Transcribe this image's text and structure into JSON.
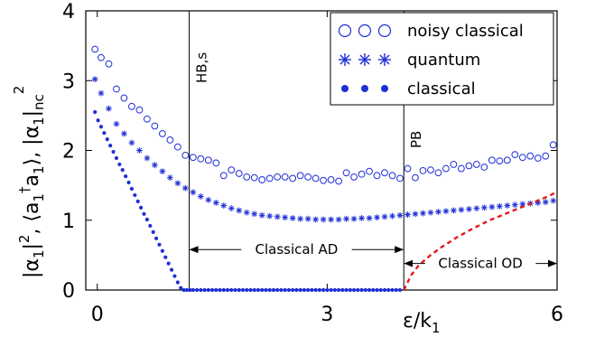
{
  "chart_data": {
    "type": "scatter",
    "xlabel": "ε/k",
    "xlabel_sub": "1",
    "ylabel_parts": [
      "|α",
      "1",
      "|",
      "2",
      ", ⟨a",
      "1",
      "†",
      "a",
      "1",
      "⟩, ",
      "|α",
      "1",
      "|",
      "nc",
      "2"
    ],
    "xlim": [
      -0.15,
      6
    ],
    "ylim": [
      0,
      4
    ],
    "xticks": [
      0,
      3,
      6
    ],
    "xtick_labels": [
      "0",
      "3",
      "6"
    ],
    "yticks": [
      0,
      1,
      2,
      3,
      4
    ],
    "ytick_labels": [
      "0",
      "1",
      "2",
      "3",
      "4"
    ],
    "legend_position": "top-right",
    "series": [
      {
        "name": "noisy classical",
        "marker": "open-circle",
        "color": "#1f2fd6",
        "x": [
          -0.03,
          0.05,
          0.15,
          0.25,
          0.35,
          0.45,
          0.55,
          0.65,
          0.75,
          0.85,
          0.95,
          1.05,
          1.15,
          1.25,
          1.35,
          1.45,
          1.55,
          1.65,
          1.75,
          1.85,
          1.95,
          2.05,
          2.15,
          2.25,
          2.35,
          2.45,
          2.55,
          2.65,
          2.75,
          2.85,
          2.95,
          3.05,
          3.15,
          3.25,
          3.35,
          3.45,
          3.55,
          3.65,
          3.75,
          3.85,
          3.95,
          4.05,
          4.15,
          4.25,
          4.35,
          4.45,
          4.55,
          4.65,
          4.75,
          4.85,
          4.95,
          5.05,
          5.15,
          5.25,
          5.35,
          5.45,
          5.55,
          5.65,
          5.75,
          5.85,
          5.95
        ],
        "y": [
          3.45,
          3.33,
          3.24,
          2.88,
          2.75,
          2.63,
          2.58,
          2.45,
          2.35,
          2.24,
          2.15,
          2.05,
          1.93,
          1.9,
          1.88,
          1.86,
          1.82,
          1.64,
          1.72,
          1.67,
          1.62,
          1.61,
          1.58,
          1.6,
          1.62,
          1.62,
          1.6,
          1.64,
          1.62,
          1.6,
          1.57,
          1.58,
          1.56,
          1.68,
          1.62,
          1.66,
          1.7,
          1.64,
          1.68,
          1.64,
          1.6,
          1.74,
          1.61,
          1.71,
          1.72,
          1.68,
          1.74,
          1.8,
          1.74,
          1.78,
          1.8,
          1.76,
          1.86,
          1.85,
          1.86,
          1.94,
          1.9,
          1.92,
          1.89,
          1.92,
          2.08
        ]
      },
      {
        "name": "quantum",
        "marker": "asterisk",
        "color": "#1f2fd6",
        "x": [
          -0.03,
          0.05,
          0.15,
          0.25,
          0.35,
          0.45,
          0.55,
          0.65,
          0.75,
          0.85,
          0.95,
          1.05,
          1.15,
          1.25,
          1.35,
          1.45,
          1.55,
          1.65,
          1.75,
          1.85,
          1.95,
          2.05,
          2.15,
          2.25,
          2.35,
          2.45,
          2.55,
          2.65,
          2.75,
          2.85,
          2.95,
          3.05,
          3.15,
          3.25,
          3.35,
          3.45,
          3.55,
          3.65,
          3.75,
          3.85,
          3.95,
          4.05,
          4.15,
          4.25,
          4.35,
          4.45,
          4.55,
          4.65,
          4.75,
          4.85,
          4.95,
          5.05,
          5.15,
          5.25,
          5.35,
          5.45,
          5.55,
          5.65,
          5.75,
          5.85,
          5.95
        ],
        "y": [
          3.02,
          2.82,
          2.6,
          2.38,
          2.24,
          2.11,
          2.0,
          1.89,
          1.79,
          1.7,
          1.61,
          1.53,
          1.46,
          1.4,
          1.34,
          1.29,
          1.25,
          1.21,
          1.17,
          1.14,
          1.11,
          1.09,
          1.07,
          1.06,
          1.05,
          1.04,
          1.03,
          1.02,
          1.02,
          1.01,
          1.01,
          1.01,
          1.01,
          1.02,
          1.02,
          1.03,
          1.03,
          1.04,
          1.05,
          1.06,
          1.07,
          1.08,
          1.09,
          1.1,
          1.11,
          1.12,
          1.13,
          1.14,
          1.15,
          1.16,
          1.17,
          1.18,
          1.19,
          1.2,
          1.21,
          1.22,
          1.23,
          1.24,
          1.25,
          1.26,
          1.28
        ]
      },
      {
        "name": "classical",
        "marker": "filled-dot",
        "color": "#1f2fd6",
        "x": [
          -0.03,
          0.01,
          0.05,
          0.09,
          0.13,
          0.17,
          0.21,
          0.25,
          0.29,
          0.33,
          0.37,
          0.41,
          0.45,
          0.49,
          0.53,
          0.57,
          0.61,
          0.65,
          0.69,
          0.73,
          0.77,
          0.81,
          0.85,
          0.89,
          0.93,
          0.97,
          1.01,
          1.05,
          1.09,
          1.13,
          1.17,
          1.21,
          1.25,
          1.3,
          1.35,
          1.4,
          1.45,
          1.5,
          1.55,
          1.6,
          1.65,
          1.7,
          1.75,
          1.8,
          1.85,
          1.9,
          1.95,
          2.0,
          2.05,
          2.1,
          2.15,
          2.2,
          2.25,
          2.3,
          2.35,
          2.4,
          2.45,
          2.5,
          2.55,
          2.6,
          2.65,
          2.7,
          2.75,
          2.8,
          2.85,
          2.9,
          2.95,
          3.0,
          3.05,
          3.1,
          3.15,
          3.2,
          3.25,
          3.3,
          3.35,
          3.4,
          3.45,
          3.5,
          3.55,
          3.6,
          3.65,
          3.7,
          3.75,
          3.8,
          3.85,
          3.9,
          3.95
        ],
        "y": [
          2.55,
          2.43,
          2.34,
          2.25,
          2.16,
          2.07,
          1.98,
          1.89,
          1.8,
          1.72,
          1.63,
          1.54,
          1.45,
          1.36,
          1.27,
          1.18,
          1.09,
          1.01,
          0.92,
          0.83,
          0.74,
          0.65,
          0.56,
          0.47,
          0.38,
          0.29,
          0.2,
          0.11,
          0.03,
          0.0,
          0.0,
          0.0,
          0.0,
          0.0,
          0.0,
          0.0,
          0.0,
          0.0,
          0.0,
          0.0,
          0.0,
          0.0,
          0.0,
          0.0,
          0.0,
          0.0,
          0.0,
          0.0,
          0.0,
          0.0,
          0.0,
          0.0,
          0.0,
          0.0,
          0.0,
          0.0,
          0.0,
          0.0,
          0.0,
          0.0,
          0.0,
          0.0,
          0.0,
          0.0,
          0.0,
          0.0,
          0.0,
          0.0,
          0.0,
          0.0,
          0.0,
          0.0,
          0.0,
          0.0,
          0.0,
          0.0,
          0.0,
          0.0,
          0.0,
          0.0,
          0.0,
          0.0,
          0.0,
          0.0,
          0.0,
          0.0,
          0.0
        ]
      },
      {
        "name": "",
        "marker": "dashed-line",
        "color": "#e21a1a",
        "x": [
          4.0,
          4.1,
          4.2,
          4.35,
          4.5,
          4.7,
          4.9,
          5.1,
          5.3,
          5.5,
          5.7,
          5.9,
          6.0
        ],
        "y": [
          0.0,
          0.22,
          0.36,
          0.5,
          0.62,
          0.76,
          0.88,
          0.99,
          1.08,
          1.17,
          1.26,
          1.35,
          1.41
        ]
      }
    ],
    "vlines": [
      {
        "x": 1.2,
        "label": "HB,s"
      },
      {
        "x": 4.0,
        "label": "PB"
      }
    ],
    "regions": [
      {
        "x0": 1.2,
        "x1": 4.0,
        "y": 0.58,
        "label": "Classical AD"
      },
      {
        "x0": 4.0,
        "x1": 6.0,
        "y": 0.38,
        "label": "Classical OD"
      }
    ]
  }
}
